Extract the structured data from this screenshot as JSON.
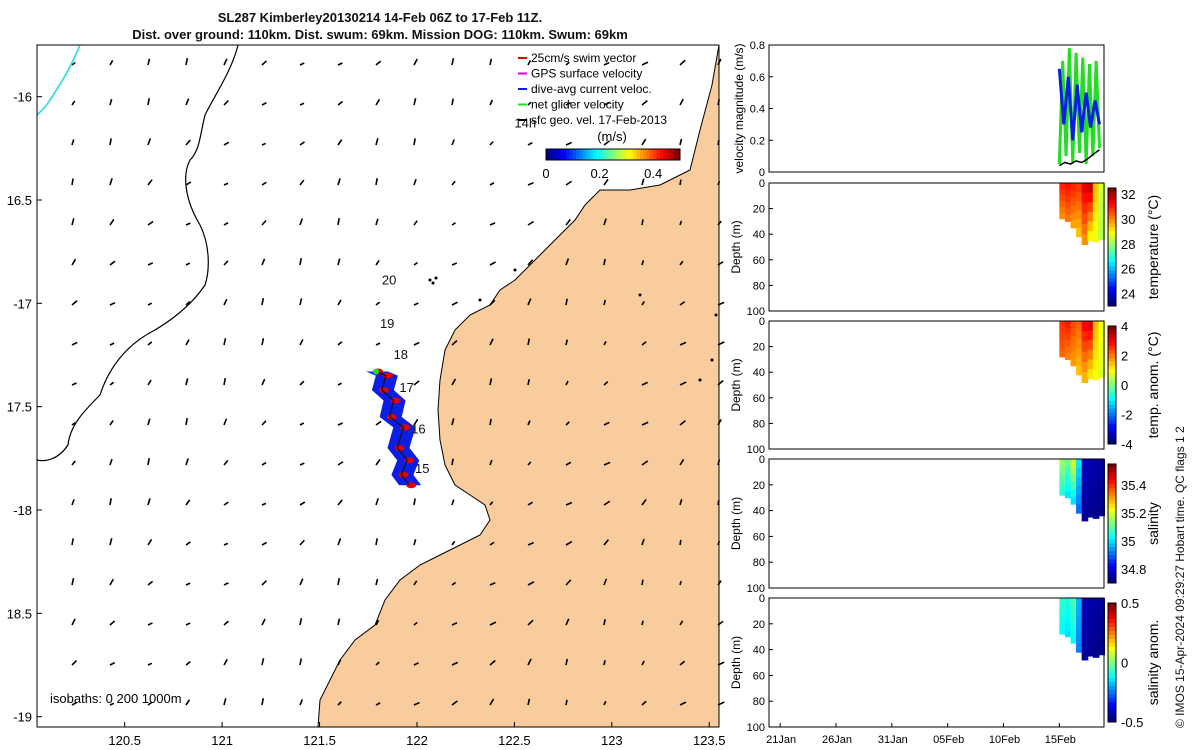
{
  "title": {
    "line1": "SL287 Kimberley20130214 14-Feb 06Z to 17-Feb 11Z.",
    "line2": "Dist. over ground: 110km. Dist. swum: 69km. Mission DOG: 110km. Swum: 69km"
  },
  "footer_text": "© IMOS 15-Apr-2024 09:29:27 Hobart time. QC flags 1  2",
  "colors": {
    "land": "#f9cc9d",
    "track_blue": "#0a1ee6",
    "track_red": "#e60000",
    "green": "#22dd22",
    "cyan": "#22e0e0"
  },
  "chart_data": [
    {
      "type": "map",
      "name": "glider-track-map",
      "xlim": [
        120.05,
        123.55
      ],
      "ylim": [
        -19.05,
        -15.75
      ],
      "x_ticks": [
        120.5,
        121,
        121.5,
        122,
        122.5,
        123,
        123.5
      ],
      "x_tick_labels": [
        "120.5",
        "121",
        "121.5",
        "122",
        "122.5",
        "123",
        "123.5"
      ],
      "y_ticks": [
        -16,
        -16.5,
        -17,
        -17.5,
        -18,
        -18.5,
        -19
      ],
      "y_tick_labels": [
        "-16",
        "16.5",
        "-17",
        "17.5",
        "-18",
        "18.5",
        "-19"
      ],
      "legend": {
        "position": "top-right",
        "entries": [
          {
            "label": "25cm/s swim vector",
            "color": "#e60000"
          },
          {
            "label": "GPS surface velocity",
            "color": "#e000e0"
          },
          {
            "label": "dive-avg current veloc.",
            "color": "#0a1ee6"
          },
          {
            "label": "net glider velocity",
            "color": "#22dd22"
          },
          {
            "label": "sfc geo. vel. 17-Feb-2013",
            "color": "#000000"
          }
        ]
      },
      "colorbar": {
        "title": "(m/s)",
        "ticks": [
          0,
          0.2,
          0.4
        ],
        "tick_labels": [
          "0",
          "0.2",
          "0.4"
        ],
        "range": [
          0,
          0.5
        ]
      },
      "day_labels": [
        {
          "label": "14h",
          "lon": 122.5,
          "lat": -16.15
        },
        {
          "label": "20",
          "lon": 121.82,
          "lat": -16.91
        },
        {
          "label": "19",
          "lon": 121.81,
          "lat": -17.12
        },
        {
          "label": "18",
          "lon": 121.88,
          "lat": -17.27
        },
        {
          "label": "17",
          "lon": 121.91,
          "lat": -17.43
        },
        {
          "label": "16",
          "lon": 121.97,
          "lat": -17.63
        },
        {
          "label": "15",
          "lon": 121.99,
          "lat": -17.82
        }
      ],
      "isobath_label": "isobaths: 0   200  1000m",
      "track": [
        {
          "lon": 121.79,
          "lat": -17.33
        },
        {
          "lon": 121.84,
          "lat": -17.35
        },
        {
          "lon": 121.82,
          "lat": -17.42
        },
        {
          "lon": 121.88,
          "lat": -17.47
        },
        {
          "lon": 121.86,
          "lat": -17.55
        },
        {
          "lon": 121.93,
          "lat": -17.6
        },
        {
          "lon": 121.9,
          "lat": -17.7
        },
        {
          "lon": 121.95,
          "lat": -17.76
        },
        {
          "lon": 121.92,
          "lat": -17.83
        },
        {
          "lon": 121.96,
          "lat": -17.88
        }
      ]
    },
    {
      "type": "line",
      "name": "velocity-magnitude",
      "ylabel": "velocity magnitude (m/s)",
      "ylim": [
        0,
        0.8
      ],
      "y_ticks": [
        0,
        0.2,
        0.4,
        0.6,
        0.8
      ],
      "y_tick_labels": [
        "0",
        "0.2",
        "0.4",
        "0.6",
        "0.8"
      ],
      "grid": false,
      "series": [
        {
          "name": "net glider velocity",
          "color": "#22dd22",
          "x_days": [
            26.0,
            26.3,
            26.6,
            26.9,
            27.2,
            27.5,
            27.8,
            28.1,
            28.4,
            28.7,
            29.0,
            29.3,
            29.6
          ],
          "values": [
            0.05,
            0.7,
            0.1,
            0.78,
            0.06,
            0.75,
            0.12,
            0.72,
            0.05,
            0.68,
            0.1,
            0.7,
            0.15
          ]
        },
        {
          "name": "dive-avg current veloc.",
          "color": "#0a1ee6",
          "x_days": [
            26.0,
            26.4,
            26.8,
            27.2,
            27.6,
            28.0,
            28.4,
            28.8,
            29.2,
            29.6
          ],
          "values": [
            0.65,
            0.3,
            0.6,
            0.2,
            0.55,
            0.25,
            0.5,
            0.28,
            0.45,
            0.3
          ]
        },
        {
          "name": "sfc geo. vel. 17-Feb-2013",
          "color": "#000000",
          "x_days": [
            26.0,
            26.5,
            27.0,
            27.5,
            28.0,
            28.5,
            29.0,
            29.6
          ],
          "values": [
            0.04,
            0.06,
            0.05,
            0.07,
            0.06,
            0.08,
            0.11,
            0.14
          ]
        }
      ]
    },
    {
      "type": "heatmap",
      "name": "temperature-section",
      "ylabel": "Depth (m)",
      "ylim": [
        0,
        100
      ],
      "y_ticks": [
        0,
        20,
        40,
        60,
        80,
        100
      ],
      "y_tick_labels": [
        "0",
        "20",
        "40",
        "60",
        "80",
        "100"
      ],
      "colorbar_label": "temperature (°C)",
      "colorbar_ticks": [
        24,
        26,
        28,
        30,
        32
      ],
      "colorbar_tick_labels": [
        "24",
        "26",
        "28",
        "30",
        "32"
      ],
      "colorbar_range": [
        23,
        32.5
      ],
      "columns": [
        {
          "day": 26.0,
          "max_depth": 28,
          "top": 31.0,
          "bottom": 30.0
        },
        {
          "day": 26.5,
          "max_depth": 30,
          "top": 31.2,
          "bottom": 30.2
        },
        {
          "day": 27.0,
          "max_depth": 35,
          "top": 31.0,
          "bottom": 29.8
        },
        {
          "day": 27.5,
          "max_depth": 42,
          "top": 30.8,
          "bottom": 29.5
        },
        {
          "day": 28.0,
          "max_depth": 48,
          "top": 31.5,
          "bottom": 30.0
        },
        {
          "day": 28.5,
          "max_depth": 45,
          "top": 31.8,
          "bottom": 29.0
        },
        {
          "day": 29.0,
          "max_depth": 46,
          "top": 29.5,
          "bottom": 28.8
        },
        {
          "day": 29.5,
          "max_depth": 44,
          "top": 28.5,
          "bottom": 28.2
        }
      ]
    },
    {
      "type": "heatmap",
      "name": "temperature-anomaly-section",
      "ylabel": "Depth (m)",
      "ylim": [
        0,
        100
      ],
      "y_ticks": [
        0,
        20,
        40,
        60,
        80,
        100
      ],
      "y_tick_labels": [
        "0",
        "20",
        "40",
        "60",
        "80",
        "100"
      ],
      "colorbar_label": "temp. anom. (°C)",
      "colorbar_ticks": [
        -4,
        -2,
        0,
        2,
        4
      ],
      "colorbar_tick_labels": [
        "-4",
        "-2",
        "0",
        "2",
        "4"
      ],
      "colorbar_range": [
        -4,
        4
      ],
      "columns": [
        {
          "day": 26.0,
          "max_depth": 28,
          "top": 2.6,
          "bottom": 2.2
        },
        {
          "day": 26.5,
          "max_depth": 30,
          "top": 2.8,
          "bottom": 2.0
        },
        {
          "day": 27.0,
          "max_depth": 35,
          "top": 2.4,
          "bottom": 1.8
        },
        {
          "day": 27.5,
          "max_depth": 42,
          "top": 2.2,
          "bottom": 1.5
        },
        {
          "day": 28.0,
          "max_depth": 48,
          "top": 3.0,
          "bottom": 1.6
        },
        {
          "day": 28.5,
          "max_depth": 45,
          "top": 3.2,
          "bottom": 1.2
        },
        {
          "day": 29.0,
          "max_depth": 46,
          "top": 1.5,
          "bottom": 1.0
        },
        {
          "day": 29.5,
          "max_depth": 44,
          "top": 0.9,
          "bottom": 0.7
        }
      ]
    },
    {
      "type": "heatmap",
      "name": "salinity-section",
      "ylabel": "Depth (m)",
      "ylim": [
        0,
        100
      ],
      "y_ticks": [
        0,
        20,
        40,
        60,
        80,
        100
      ],
      "y_tick_labels": [
        "0",
        "20",
        "40",
        "60",
        "80",
        "100"
      ],
      "colorbar_label": "salinity",
      "colorbar_ticks": [
        34.8,
        35,
        35.2,
        35.4
      ],
      "colorbar_tick_labels": [
        "34.8",
        "35",
        "35.2",
        "35.4"
      ],
      "colorbar_range": [
        34.7,
        35.55
      ],
      "columns": [
        {
          "day": 26.0,
          "max_depth": 28,
          "top": 35.15,
          "bottom": 35.05
        },
        {
          "day": 26.5,
          "max_depth": 30,
          "top": 35.1,
          "bottom": 35.0
        },
        {
          "day": 27.0,
          "max_depth": 35,
          "top": 35.2,
          "bottom": 35.0
        },
        {
          "day": 27.5,
          "max_depth": 42,
          "top": 35.0,
          "bottom": 34.9
        },
        {
          "day": 28.0,
          "max_depth": 48,
          "top": 34.75,
          "bottom": 34.72
        },
        {
          "day": 28.5,
          "max_depth": 45,
          "top": 34.74,
          "bottom": 34.72
        },
        {
          "day": 29.0,
          "max_depth": 46,
          "top": 34.73,
          "bottom": 34.71
        },
        {
          "day": 29.5,
          "max_depth": 44,
          "top": 34.73,
          "bottom": 34.71
        }
      ]
    },
    {
      "type": "heatmap",
      "name": "salinity-anomaly-section",
      "ylabel": "Depth (m)",
      "ylim": [
        0,
        100
      ],
      "y_ticks": [
        0,
        20,
        40,
        60,
        80,
        100
      ],
      "y_tick_labels": [
        "0",
        "20",
        "40",
        "60",
        "80",
        "100"
      ],
      "colorbar_label": "salinity anom.",
      "colorbar_ticks": [
        -0.5,
        0,
        0.5
      ],
      "colorbar_tick_labels": [
        "-0.5",
        "0",
        "0.5"
      ],
      "colorbar_range": [
        -0.5,
        0.5
      ],
      "x_day_ticks": [
        1,
        6,
        11,
        16,
        21,
        26
      ],
      "x_tick_labels": [
        "21Jan",
        "26Jan",
        "31Jan",
        "05Feb",
        "10Feb",
        "15Feb"
      ],
      "columns": [
        {
          "day": 26.0,
          "max_depth": 28,
          "top": -0.08,
          "bottom": -0.12
        },
        {
          "day": 26.5,
          "max_depth": 30,
          "top": -0.1,
          "bottom": -0.15
        },
        {
          "day": 27.0,
          "max_depth": 35,
          "top": -0.05,
          "bottom": -0.12
        },
        {
          "day": 27.5,
          "max_depth": 42,
          "top": -0.2,
          "bottom": -0.25
        },
        {
          "day": 28.0,
          "max_depth": 48,
          "top": -0.45,
          "bottom": -0.47
        },
        {
          "day": 28.5,
          "max_depth": 45,
          "top": -0.46,
          "bottom": -0.48
        },
        {
          "day": 29.0,
          "max_depth": 46,
          "top": -0.47,
          "bottom": -0.49
        },
        {
          "day": 29.5,
          "max_depth": 44,
          "top": -0.47,
          "bottom": -0.49
        }
      ]
    }
  ]
}
